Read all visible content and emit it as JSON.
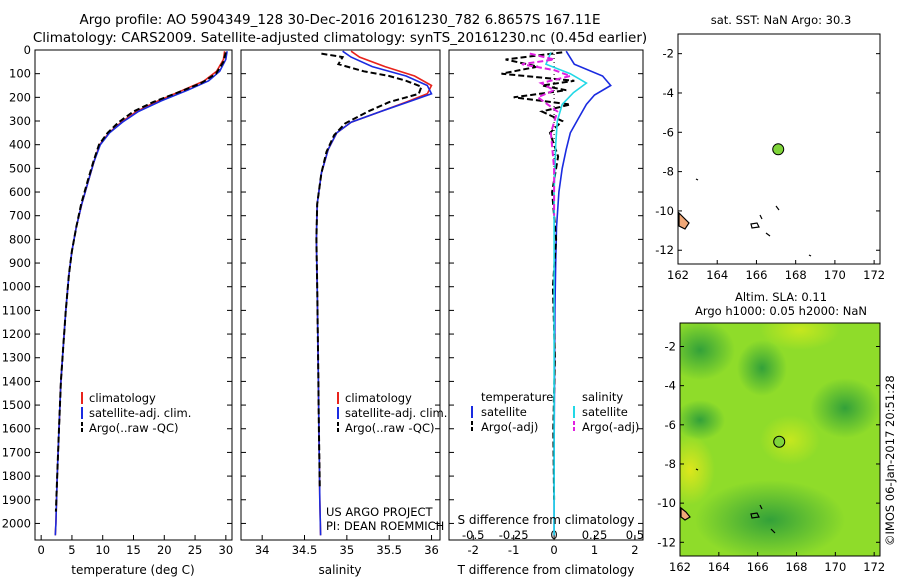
{
  "header": {
    "line1": "Argo profile: AO 5904349_128 30-Dec-2016 20161230_782 6.8657S 167.11E",
    "line2": "Climatology: CARS2009. Satellite-adjusted climatology: synTS_20161230.nc (0.45d earlier)"
  },
  "colors": {
    "climatology": "#e8231c",
    "satellite": "#1a2be0",
    "argo": "#000000",
    "s_satellite": "#22d8e6",
    "s_argo": "#e020e0",
    "argo_marker": "#7fd43a"
  },
  "chart_data": [
    {
      "id": "temperature",
      "type": "line",
      "xlabel": "temperature (deg C)",
      "ylabel": "",
      "xlim": [
        -1,
        31
      ],
      "ylim": [
        2070,
        0
      ],
      "xticks": [
        0,
        5,
        10,
        15,
        20,
        25,
        30
      ],
      "xtick_labels": [
        "0",
        "5",
        "10",
        "15",
        "20",
        "25",
        "30"
      ],
      "yticks": [
        0,
        100,
        200,
        300,
        400,
        500,
        600,
        700,
        800,
        900,
        1000,
        1100,
        1200,
        1300,
        1400,
        1500,
        1600,
        1700,
        1800,
        1900,
        2000
      ],
      "ytick_labels": [
        "0",
        "100",
        "200",
        "300",
        "400",
        "500",
        "600",
        "700",
        "800",
        "900",
        "1000",
        "1100",
        "1200",
        "1300",
        "1400",
        "1500",
        "1600",
        "1700",
        "1800",
        "1900",
        "2000"
      ],
      "legend": [
        "climatology",
        "satellite-adj. clim.",
        "Argo(..raw -QC)"
      ],
      "series": [
        {
          "name": "climatology",
          "color_key": "climatology",
          "style": "solid",
          "points": [
            [
              29.8,
              5
            ],
            [
              29.6,
              40
            ],
            [
              28.5,
              90
            ],
            [
              26.5,
              130
            ],
            [
              23.0,
              170
            ],
            [
              19.0,
              215
            ],
            [
              15.5,
              260
            ],
            [
              13.0,
              305
            ],
            [
              11.0,
              350
            ],
            [
              9.5,
              400
            ],
            [
              8.6,
              470
            ],
            [
              7.7,
              550
            ],
            [
              6.6,
              650
            ],
            [
              5.7,
              750
            ],
            [
              5.0,
              850
            ],
            [
              4.5,
              950
            ],
            [
              4.0,
              1100
            ],
            [
              3.6,
              1250
            ],
            [
              3.2,
              1400
            ],
            [
              2.9,
              1600
            ],
            [
              2.6,
              1800
            ],
            [
              2.4,
              2000
            ],
            [
              2.3,
              2050
            ]
          ]
        },
        {
          "name": "satellite-adj. clim.",
          "color_key": "satellite",
          "style": "solid",
          "points": [
            [
              30.2,
              5
            ],
            [
              30.0,
              40
            ],
            [
              29.0,
              90
            ],
            [
              27.2,
              130
            ],
            [
              23.8,
              170
            ],
            [
              19.5,
              215
            ],
            [
              15.8,
              260
            ],
            [
              13.2,
              305
            ],
            [
              11.1,
              350
            ],
            [
              9.6,
              400
            ],
            [
              8.6,
              470
            ],
            [
              7.7,
              550
            ],
            [
              6.6,
              650
            ],
            [
              5.7,
              750
            ],
            [
              5.0,
              850
            ],
            [
              4.5,
              950
            ],
            [
              4.0,
              1100
            ],
            [
              3.6,
              1250
            ],
            [
              3.2,
              1400
            ],
            [
              2.9,
              1600
            ],
            [
              2.6,
              1800
            ],
            [
              2.4,
              2000
            ],
            [
              2.3,
              2050
            ]
          ]
        },
        {
          "name": "Argo(..raw -QC)",
          "color_key": "argo",
          "style": "dashed",
          "points": [
            [
              30.0,
              10
            ],
            [
              29.6,
              50
            ],
            [
              28.4,
              100
            ],
            [
              26.0,
              140
            ],
            [
              22.2,
              180
            ],
            [
              18.2,
              220
            ],
            [
              15.0,
              260
            ],
            [
              12.6,
              305
            ],
            [
              10.8,
              350
            ],
            [
              9.4,
              400
            ],
            [
              8.5,
              470
            ],
            [
              7.6,
              550
            ],
            [
              6.5,
              650
            ],
            [
              5.7,
              750
            ],
            [
              5.0,
              850
            ],
            [
              4.5,
              950
            ],
            [
              4.0,
              1100
            ],
            [
              3.6,
              1250
            ],
            [
              3.2,
              1400
            ],
            [
              2.9,
              1600
            ],
            [
              2.6,
              1800
            ],
            [
              2.4,
              1950
            ]
          ]
        }
      ]
    },
    {
      "id": "salinity",
      "type": "line",
      "xlabel": "salinity",
      "ylabel": "",
      "xlim": [
        33.75,
        36.1
      ],
      "ylim": [
        2070,
        0
      ],
      "xticks": [
        34,
        34.5,
        35,
        35.5,
        36
      ],
      "xtick_labels": [
        "34",
        "34.5",
        "35",
        "35.5",
        "36"
      ],
      "legend": [
        "climatology",
        "satellite-adj. clim.",
        "Argo(..raw -QC)"
      ],
      "annotation_lines": [
        "US ARGO PROJECT",
        "PI: DEAN ROEMMICH"
      ],
      "series": [
        {
          "name": "climatology",
          "color_key": "climatology",
          "style": "solid",
          "points": [
            [
              35.05,
              5
            ],
            [
              35.15,
              30
            ],
            [
              35.45,
              70
            ],
            [
              35.8,
              110
            ],
            [
              36.0,
              150
            ],
            [
              35.95,
              185
            ],
            [
              35.7,
              220
            ],
            [
              35.4,
              260
            ],
            [
              35.05,
              305
            ],
            [
              34.88,
              350
            ],
            [
              34.78,
              420
            ],
            [
              34.7,
              520
            ],
            [
              34.65,
              650
            ],
            [
              34.64,
              800
            ],
            [
              34.65,
              1000
            ],
            [
              34.66,
              1300
            ],
            [
              34.67,
              1600
            ],
            [
              34.68,
              1900
            ],
            [
              34.69,
              2050
            ]
          ]
        },
        {
          "name": "satellite-adj. clim.",
          "color_key": "satellite",
          "style": "solid",
          "points": [
            [
              34.95,
              5
            ],
            [
              35.05,
              30
            ],
            [
              35.3,
              70
            ],
            [
              35.7,
              110
            ],
            [
              35.95,
              150
            ],
            [
              36.0,
              185
            ],
            [
              35.72,
              220
            ],
            [
              35.4,
              260
            ],
            [
              35.05,
              305
            ],
            [
              34.88,
              350
            ],
            [
              34.78,
              420
            ],
            [
              34.7,
              520
            ],
            [
              34.65,
              650
            ],
            [
              34.64,
              800
            ],
            [
              34.65,
              1000
            ],
            [
              34.66,
              1300
            ],
            [
              34.67,
              1600
            ],
            [
              34.68,
              1900
            ],
            [
              34.69,
              2050
            ]
          ]
        },
        {
          "name": "Argo(..raw -QC)",
          "color_key": "argo",
          "style": "dashed",
          "points": [
            [
              34.7,
              15
            ],
            [
              34.95,
              30
            ],
            [
              34.9,
              60
            ],
            [
              35.2,
              90
            ],
            [
              35.5,
              110
            ],
            [
              35.7,
              130
            ],
            [
              35.88,
              155
            ],
            [
              35.85,
              185
            ],
            [
              35.5,
              220
            ],
            [
              35.25,
              260
            ],
            [
              34.98,
              310
            ],
            [
              34.85,
              360
            ],
            [
              34.76,
              430
            ],
            [
              34.7,
              520
            ],
            [
              34.65,
              650
            ],
            [
              34.64,
              800
            ],
            [
              34.65,
              1000
            ],
            [
              34.66,
              1300
            ],
            [
              34.67,
              1600
            ],
            [
              34.68,
              1850
            ]
          ]
        }
      ]
    },
    {
      "id": "differences",
      "type": "line",
      "xlabel": "T difference from climatology",
      "xlabel_top": "S difference from climatology",
      "xlim": [
        -2.6,
        2.2
      ],
      "ylim": [
        2070,
        0
      ],
      "xticks": [
        -2,
        -1,
        0,
        1,
        2
      ],
      "xtick_labels": [
        "-2",
        "-1",
        "0",
        "1",
        "2"
      ],
      "s_xticks": [
        -0.5,
        -0.25,
        0,
        0.25,
        0.5
      ],
      "s_xtick_labels": [
        "-0.5",
        "-0.25",
        "0",
        "0.25",
        "0.5"
      ],
      "legend_titles": [
        "temperature",
        "salinity"
      ],
      "legend": [
        "satellite",
        "Argo(-adj)",
        "satellite",
        "Argo(-adj)"
      ],
      "series": [
        {
          "name": "T satellite",
          "color_key": "satellite",
          "style": "solid",
          "axis": "T",
          "points": [
            [
              0.3,
              5
            ],
            [
              0.5,
              60
            ],
            [
              1.2,
              110
            ],
            [
              1.4,
              150
            ],
            [
              1.0,
              190
            ],
            [
              0.8,
              230
            ],
            [
              0.6,
              290
            ],
            [
              0.4,
              350
            ],
            [
              0.3,
              420
            ],
            [
              0.2,
              500
            ],
            [
              0.12,
              600
            ],
            [
              0.06,
              750
            ],
            [
              0.04,
              900
            ],
            [
              0.02,
              1100
            ],
            [
              0.01,
              1400
            ],
            [
              0.0,
              1700
            ],
            [
              0.0,
              2050
            ]
          ]
        },
        {
          "name": "T Argo(-adj)",
          "color_key": "argo",
          "style": "dashed",
          "axis": "T",
          "points": [
            [
              0.2,
              10
            ],
            [
              -1.2,
              40
            ],
            [
              -0.4,
              70
            ],
            [
              -1.3,
              100
            ],
            [
              0.5,
              130
            ],
            [
              -0.3,
              150
            ],
            [
              0.3,
              170
            ],
            [
              -1.0,
              200
            ],
            [
              0.4,
              230
            ],
            [
              -0.3,
              260
            ],
            [
              0.2,
              300
            ],
            [
              -0.1,
              350
            ],
            [
              0.1,
              450
            ],
            [
              -0.05,
              600
            ],
            [
              0.05,
              800
            ],
            [
              -0.03,
              1000
            ],
            [
              0.02,
              1300
            ],
            [
              -0.02,
              1600
            ],
            [
              0.0,
              1900
            ]
          ]
        },
        {
          "name": "S satellite",
          "color_key": "s_satellite",
          "style": "solid",
          "axis": "S",
          "points": [
            [
              -0.02,
              10
            ],
            [
              -0.05,
              60
            ],
            [
              0.1,
              100
            ],
            [
              0.2,
              140
            ],
            [
              0.12,
              180
            ],
            [
              0.05,
              230
            ],
            [
              0.02,
              300
            ],
            [
              0.01,
              400
            ],
            [
              0.0,
              600
            ],
            [
              0.0,
              900
            ],
            [
              0.0,
              1300
            ],
            [
              0.0,
              1700
            ],
            [
              0.0,
              2050
            ]
          ]
        },
        {
          "name": "S Argo(-adj)",
          "color_key": "s_argo",
          "style": "dashed",
          "axis": "S",
          "points": [
            [
              -0.15,
              15
            ],
            [
              0.0,
              40
            ],
            [
              -0.2,
              60
            ],
            [
              0.0,
              85
            ],
            [
              0.1,
              110
            ],
            [
              -0.08,
              140
            ],
            [
              0.0,
              170
            ],
            [
              -0.1,
              200
            ],
            [
              0.02,
              260
            ],
            [
              -0.02,
              350
            ],
            [
              0.0,
              500
            ],
            [
              0.0,
              700
            ]
          ]
        }
      ]
    },
    {
      "id": "sst_map",
      "type": "scatter",
      "title": "sat. SST: NaN  Argo: 30.3",
      "xlim": [
        162,
        172.3
      ],
      "ylim": [
        -12.7,
        -1
      ],
      "xticks": [
        162,
        164,
        166,
        168,
        170,
        172
      ],
      "xtick_labels": [
        "162",
        "164",
        "166",
        "168",
        "170",
        "172"
      ],
      "yticks": [
        -2,
        -4,
        -6,
        -8,
        -10,
        -12
      ],
      "ytick_labels": [
        "-2",
        "-4",
        "-6",
        "-8",
        "-10",
        "-12"
      ],
      "argo_position": [
        167.11,
        -6.8657
      ]
    },
    {
      "id": "sla_map",
      "type": "heatmap",
      "title_lines": [
        "Altim. SLA: 0.11",
        "Argo h1000: 0.05 h2000: NaN"
      ],
      "xlim": [
        162,
        172.3
      ],
      "ylim": [
        -12.7,
        -0.8
      ],
      "xticks": [
        162,
        164,
        166,
        168,
        170,
        172
      ],
      "xtick_labels": [
        "162",
        "164",
        "166",
        "168",
        "170",
        "172"
      ],
      "yticks": [
        -2,
        -4,
        -6,
        -8,
        -10,
        -12
      ],
      "ytick_labels": [
        "-2",
        "-4",
        "-6",
        "-8",
        "-10",
        "-12"
      ],
      "argo_position": [
        167.11,
        -6.8657
      ]
    }
  ],
  "watermark": "©IMOS 06-Jan-2017 20:51:28"
}
